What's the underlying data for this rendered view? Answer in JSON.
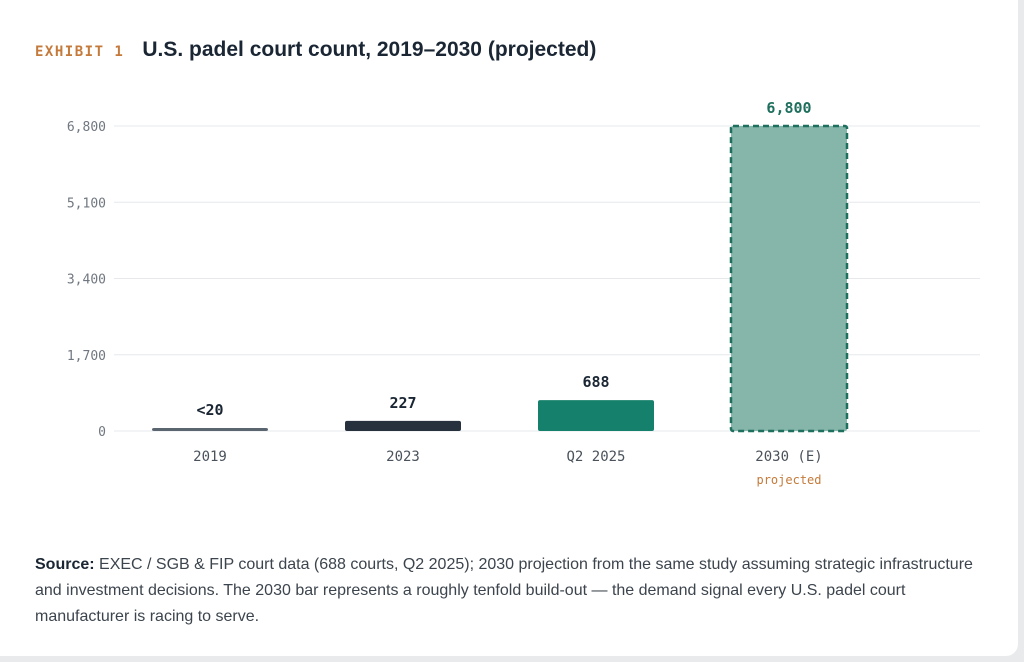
{
  "header": {
    "exhibit": "EXHIBIT 1",
    "title": "U.S. padel court count, 2019–2030 (projected)"
  },
  "chart_data": {
    "type": "bar",
    "categories": [
      "2019",
      "2023",
      "Q2 2025",
      "2030 (E)"
    ],
    "values": [
      20,
      227,
      688,
      6800
    ],
    "value_labels": [
      "<20",
      "227",
      "688",
      "6,800"
    ],
    "category_sublabels": [
      "",
      "",
      "",
      "projected"
    ],
    "bar_colors": [
      "#5a6570",
      "#26313d",
      "#15806b",
      "#86b5aa"
    ],
    "projected_outline_color": "#1f6f5e",
    "value_label_colors": [
      "#1a2633",
      "#1a2633",
      "#1a2633",
      "#1f6f5e"
    ],
    "yticks": [
      0,
      1700,
      3400,
      5100,
      6800
    ],
    "ytick_labels": [
      "0",
      "1,700",
      "3,400",
      "5,100",
      "6,800"
    ],
    "ylim": [
      0,
      6800
    ],
    "grid": true,
    "title": "U.S. padel court count, 2019–2030 (projected)"
  },
  "footnote": {
    "source_label": "Source:",
    "text": " EXEC / SGB & FIP court data (688 courts, Q2 2025); 2030 projection from the same study assuming strategic infrastructure and investment decisions. The 2030 bar represents a roughly tenfold build-out — the demand signal every U.S. padel court manufacturer is racing to serve."
  }
}
